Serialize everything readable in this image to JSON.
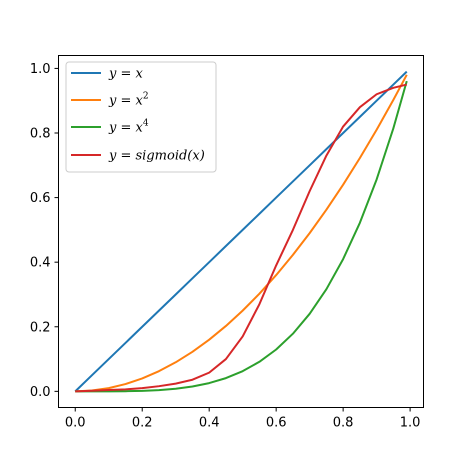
{
  "chart_data": {
    "type": "line",
    "title": "",
    "xlabel": "",
    "ylabel": "",
    "xlim": [
      -0.05,
      1.04
    ],
    "ylim": [
      -0.05,
      1.04
    ],
    "xticks": [
      "0.0",
      "0.2",
      "0.4",
      "0.6",
      "0.8",
      "1.0"
    ],
    "yticks": [
      "0.0",
      "0.2",
      "0.4",
      "0.6",
      "0.8",
      "1.0"
    ],
    "grid": false,
    "legend_position": "upper-left",
    "x": [
      0.0,
      0.05,
      0.1,
      0.15,
      0.2,
      0.25,
      0.3,
      0.35,
      0.4,
      0.45,
      0.5,
      0.55,
      0.6,
      0.65,
      0.7,
      0.75,
      0.8,
      0.85,
      0.9,
      0.95,
      0.99
    ],
    "series": [
      {
        "name": "y = x",
        "color": "#1f77b4",
        "values": [
          0.0,
          0.05,
          0.1,
          0.15,
          0.2,
          0.25,
          0.3,
          0.35,
          0.4,
          0.45,
          0.5,
          0.55,
          0.6,
          0.65,
          0.7,
          0.75,
          0.8,
          0.85,
          0.9,
          0.95,
          0.99
        ]
      },
      {
        "name": "y = x^2",
        "color": "#ff7f0e",
        "values": [
          0.0,
          0.0025,
          0.01,
          0.0225,
          0.04,
          0.0625,
          0.09,
          0.1225,
          0.16,
          0.2025,
          0.25,
          0.3025,
          0.36,
          0.4225,
          0.49,
          0.5625,
          0.64,
          0.7225,
          0.81,
          0.9025,
          0.9801
        ]
      },
      {
        "name": "y = x^4",
        "color": "#2ca02c",
        "values": [
          0.0,
          0.0,
          0.0001,
          0.0005,
          0.0016,
          0.0039,
          0.0081,
          0.015,
          0.0256,
          0.041,
          0.0625,
          0.0915,
          0.1296,
          0.1785,
          0.2401,
          0.3164,
          0.4096,
          0.522,
          0.6561,
          0.8145,
          0.9606
        ]
      },
      {
        "name": "y = sigmoid(x)",
        "color": "#d62728",
        "values": [
          0.0,
          0.002,
          0.004,
          0.006,
          0.01,
          0.016,
          0.024,
          0.036,
          0.058,
          0.1,
          0.17,
          0.27,
          0.39,
          0.5,
          0.62,
          0.73,
          0.82,
          0.88,
          0.92,
          0.94,
          0.95
        ]
      }
    ]
  },
  "legend": {
    "items": [
      {
        "color": "#1f77b4",
        "prefix": "y = ",
        "base": "x",
        "sup": ""
      },
      {
        "color": "#ff7f0e",
        "prefix": "y = ",
        "base": "x",
        "sup": "2"
      },
      {
        "color": "#2ca02c",
        "prefix": "y = ",
        "base": "x",
        "sup": "4"
      },
      {
        "color": "#d62728",
        "prefix": "y = ",
        "base": "sigmoid(x)",
        "sup": ""
      }
    ]
  }
}
